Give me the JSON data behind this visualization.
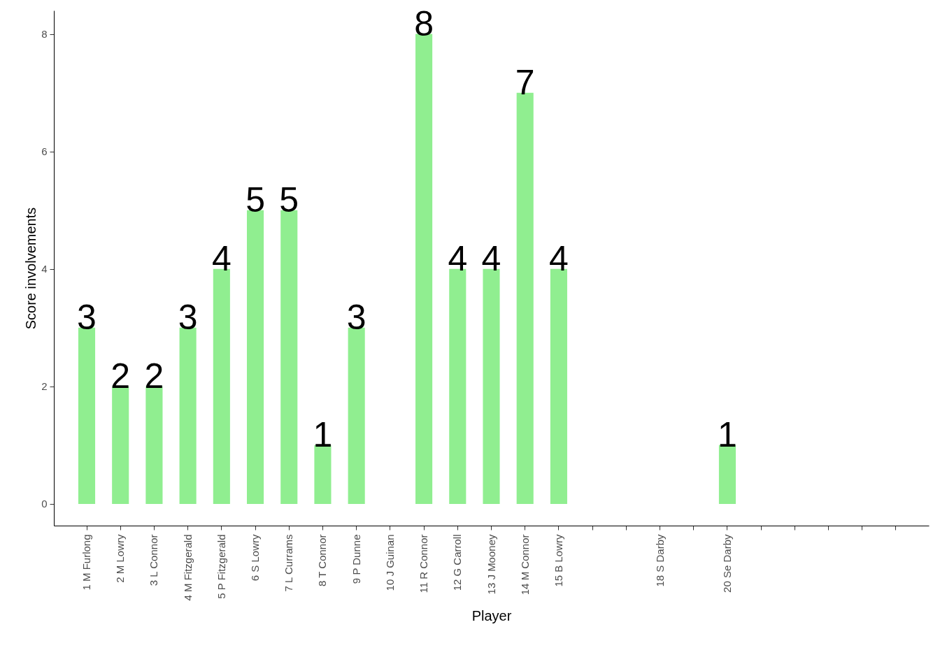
{
  "chart_data": {
    "type": "bar",
    "xlabel": "Player",
    "ylabel": "Score involvements",
    "color": "#90ee90",
    "categories": [
      "1 M Furlong",
      "2 M Lowry",
      "3 L Connor",
      "4 M Fitzgerald",
      "5 P Fitzgerald",
      "6 S Lowry",
      "7 L Currams",
      "8 T Connor",
      "9 P Dunne",
      "10 J Guinan",
      "11 R Connor",
      "12 G Carroll",
      "13 J Mooney",
      "14 M Connor",
      "15 B Lowry",
      null,
      null,
      "18 S Darby",
      null,
      "20 Se Darby",
      null,
      null,
      null,
      null,
      null
    ],
    "values": [
      3,
      2,
      2,
      3,
      4,
      5,
      5,
      1,
      3,
      0,
      8,
      4,
      4,
      7,
      4,
      null,
      null,
      0,
      null,
      1,
      null,
      null,
      null,
      null,
      null
    ],
    "value_labels": [
      "3",
      "2",
      "2",
      "3",
      "4",
      "5",
      "5",
      "1",
      "3",
      null,
      "8",
      "4",
      "4",
      "7",
      "4",
      null,
      null,
      null,
      null,
      "1",
      null,
      null,
      null,
      null,
      null
    ],
    "ylim": [
      -0.37,
      8.4
    ],
    "yticks": [
      0,
      2,
      4,
      6,
      8
    ],
    "grid": false
  }
}
